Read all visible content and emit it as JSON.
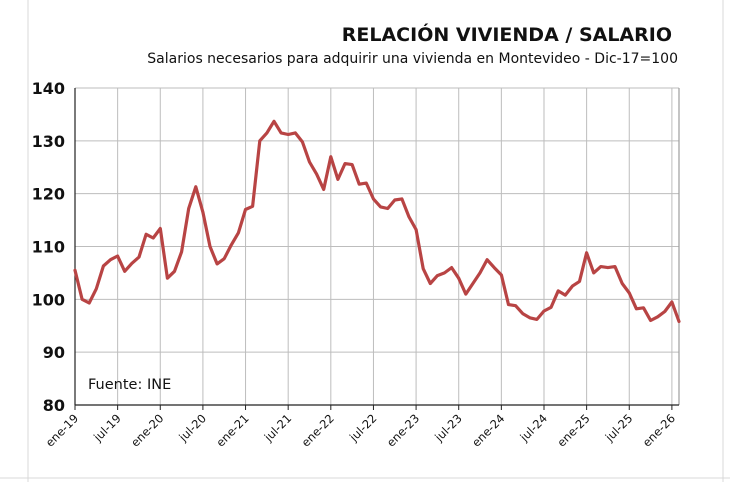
{
  "chart_data": {
    "type": "line",
    "title": "RELACIÓN VIVIENDA / SALARIO",
    "subtitle": "Salarios necesarios para adquirir una vivienda  en Montevideo - Dic-17=100",
    "annotation": "Fuente: INE",
    "ylim": [
      80,
      140
    ],
    "yticks": [
      80,
      90,
      100,
      110,
      120,
      130,
      140
    ],
    "x_tick_labels": [
      "ene-19",
      "jul-19",
      "ene-20",
      "jul-20",
      "ene-21",
      "jul-21",
      "ene-22",
      "jul-22",
      "ene-23",
      "jul-23",
      "ene-24",
      "jul-24",
      "ene-25",
      "jul-25",
      "ene-26"
    ],
    "grid": true,
    "series_color": "#b84444",
    "series": [
      {
        "x_start": "ene-19",
        "frequency": "monthly",
        "values": [
          105.5,
          100.0,
          99.3,
          102.0,
          106.3,
          107.5,
          108.2,
          105.3,
          106.8,
          108.0,
          112.3,
          111.6,
          113.4,
          104.0,
          105.3,
          109.0,
          117.2,
          121.3,
          116.5,
          110.0,
          106.7,
          107.7,
          110.3,
          112.6,
          117.0,
          117.6,
          130.0,
          131.5,
          133.7,
          131.5,
          131.2,
          131.5,
          129.8,
          126.0,
          123.7,
          120.8,
          127.0,
          122.7,
          125.7,
          125.5,
          121.8,
          122.0,
          119.0,
          117.5,
          117.2,
          118.8,
          119.0,
          115.6,
          113.2,
          105.8,
          103.0,
          104.5,
          105.0,
          106.0,
          104.0,
          101.0,
          103.0,
          105.0,
          107.5,
          106.0,
          104.6,
          99.0,
          98.8,
          97.3,
          96.5,
          96.2,
          97.8,
          98.5,
          101.6,
          100.8,
          102.5,
          103.4,
          108.8,
          105.0,
          106.2,
          106.0,
          106.2,
          103.0,
          101.2,
          98.2,
          98.4,
          96.0,
          96.7,
          97.7,
          99.5,
          95.8
        ]
      }
    ]
  }
}
